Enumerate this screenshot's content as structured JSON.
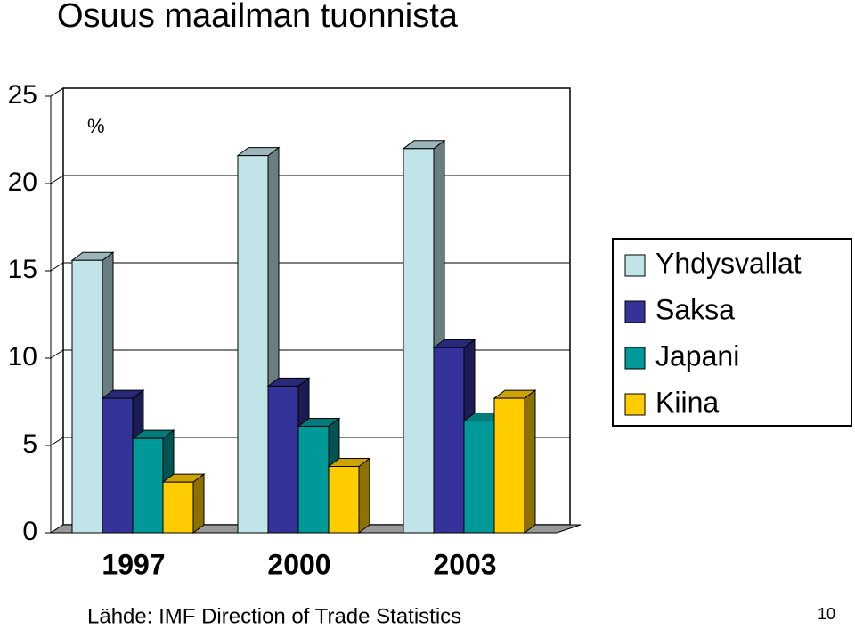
{
  "chart_data": {
    "type": "bar3d",
    "title": "Osuus maailman tuonnista",
    "y_label": "%",
    "categories": [
      "1997",
      "2000",
      "2003"
    ],
    "series": [
      {
        "name": "Yhdysvallat",
        "color": "#c0e4e8",
        "values": [
          15.6,
          21.6,
          22.0
        ]
      },
      {
        "name": "Saksa",
        "color": "#333399",
        "values": [
          7.7,
          8.4,
          10.6
        ]
      },
      {
        "name": "Japani",
        "color": "#009999",
        "values": [
          5.4,
          6.1,
          6.4
        ]
      },
      {
        "name": "Kiina",
        "color": "#ffcc00",
        "values": [
          2.9,
          3.8,
          7.7
        ]
      }
    ],
    "ylim": [
      0,
      25
    ],
    "yticks": [
      0,
      5,
      10,
      15,
      20,
      25
    ],
    "grid": true,
    "legend": "right",
    "source": "Lähde: IMF Direction of Trade Statistics",
    "page_number": "10"
  }
}
